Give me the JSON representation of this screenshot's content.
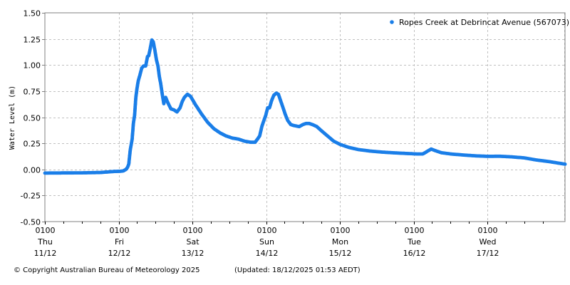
{
  "footer": {
    "copyright": "© Copyright Australian Bureau of Meteorology 2025",
    "updated": "(Updated: 18/12/2025 01:53 AEDT)"
  },
  "chart_data": {
    "type": "line",
    "title": "",
    "xlabel": "",
    "ylabel": "Water Level (m)",
    "ylim": [
      -0.5,
      1.5
    ],
    "yticks": [
      "1.50",
      "1.25",
      "1.00",
      "0.75",
      "0.50",
      "0.25",
      "0.00",
      "-0.25",
      "-0.50"
    ],
    "ytick_values": [
      1.5,
      1.25,
      1.0,
      0.75,
      0.5,
      0.25,
      0.0,
      -0.25,
      -0.5
    ],
    "xlim_hours": [
      0,
      169.3
    ],
    "x_unit": "hours since 0100 Thu 11/12",
    "xticks": [
      {
        "hour": 0,
        "time": "0100",
        "day": "Thu",
        "date": "11/12"
      },
      {
        "hour": 24,
        "time": "0100",
        "day": "Fri",
        "date": "12/12"
      },
      {
        "hour": 48,
        "time": "0100",
        "day": "Sat",
        "date": "13/12"
      },
      {
        "hour": 72,
        "time": "0100",
        "day": "Sun",
        "date": "14/12"
      },
      {
        "hour": 96,
        "time": "0100",
        "day": "Mon",
        "date": "15/12"
      },
      {
        "hour": 120,
        "time": "0100",
        "day": "Tue",
        "date": "16/12"
      },
      {
        "hour": 144,
        "time": "0100",
        "day": "Wed",
        "date": "17/12"
      }
    ],
    "minor_tick_hours": 6,
    "grid": true,
    "legend_position": "top-right",
    "series": [
      {
        "name": "Ropes Creek at Debrincat Avenue (567073)",
        "color": "#1a7ee8",
        "x": [
          0,
          6,
          12,
          18,
          22.5,
          24.5,
          25.5,
          26.4,
          26.9,
          27.3,
          27.8,
          28.4,
          28.8,
          29.2,
          29.6,
          30.0,
          30.4,
          30.9,
          31.5,
          32.1,
          32.8,
          33.4,
          33.8,
          34.3,
          34.8,
          35.3,
          35.8,
          36.3,
          36.8,
          37.3,
          37.7,
          38.2,
          38.7,
          39.3,
          40.0,
          41.0,
          42.0,
          43.0,
          44.0,
          44.7,
          45.4,
          46.4,
          47.4,
          49.0,
          51.0,
          53.0,
          55.0,
          57.0,
          59.0,
          61.0,
          63.0,
          65.0,
          67.0,
          68.4,
          69.2,
          69.9,
          70.6,
          71.3,
          71.9,
          72.5,
          73.1,
          73.8,
          74.5,
          75.3,
          76.0,
          76.7,
          77.4,
          78.2,
          79.0,
          80.0,
          81.0,
          82.8,
          84.0,
          85.0,
          86.0,
          87.0,
          88.5,
          90.0,
          92.0,
          94.0,
          96.0,
          99.0,
          102.0,
          106.0,
          110.0,
          114.0,
          118.0,
          121.0,
          123.0,
          124.3,
          125.7,
          127.0,
          129.0,
          132.0,
          136.0,
          140.0,
          144.0,
          148.0,
          152.0,
          156.0,
          160.0,
          164.0,
          169.3
        ],
        "values": [
          -0.035,
          -0.034,
          -0.033,
          -0.03,
          -0.02,
          -0.018,
          -0.015,
          0.0,
          0.02,
          0.05,
          0.19,
          0.29,
          0.44,
          0.52,
          0.69,
          0.78,
          0.85,
          0.9,
          0.97,
          0.99,
          0.99,
          1.08,
          1.09,
          1.16,
          1.24,
          1.22,
          1.14,
          1.05,
          0.99,
          0.88,
          0.82,
          0.72,
          0.63,
          0.69,
          0.64,
          0.58,
          0.57,
          0.55,
          0.59,
          0.65,
          0.69,
          0.72,
          0.7,
          0.62,
          0.53,
          0.45,
          0.39,
          0.35,
          0.32,
          0.3,
          0.29,
          0.27,
          0.26,
          0.26,
          0.29,
          0.32,
          0.41,
          0.47,
          0.52,
          0.59,
          0.59,
          0.66,
          0.71,
          0.73,
          0.72,
          0.66,
          0.6,
          0.53,
          0.47,
          0.43,
          0.42,
          0.41,
          0.43,
          0.44,
          0.44,
          0.43,
          0.41,
          0.37,
          0.32,
          0.27,
          0.24,
          0.21,
          0.19,
          0.175,
          0.165,
          0.158,
          0.152,
          0.148,
          0.148,
          0.17,
          0.195,
          0.18,
          0.16,
          0.148,
          0.138,
          0.13,
          0.125,
          0.126,
          0.12,
          0.11,
          0.09,
          0.075,
          0.05
        ]
      }
    ]
  }
}
